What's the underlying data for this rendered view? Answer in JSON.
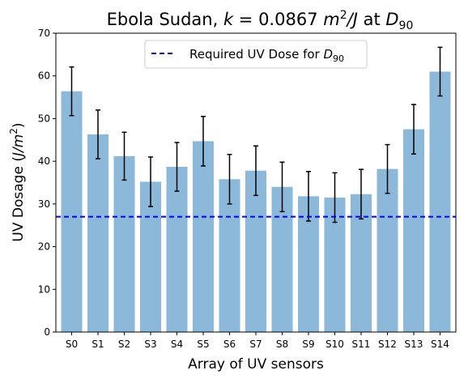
{
  "chart_data": {
    "type": "bar",
    "title": {
      "prefix": "Ebola Sudan, ",
      "k_symbol": "k",
      "k_value": " = 0.0867 ",
      "unit_base": "m",
      "unit_exp": "2",
      "unit_tail": "/J",
      "suffix": " at ",
      "d_base": "D",
      "d_sub": "90"
    },
    "xlabel": "Array of UV sensors",
    "ylabel": {
      "prefix": "UV Dosage (",
      "unit": "J/m",
      "exp": "2",
      "suffix": ")"
    },
    "categories": [
      "S0",
      "S1",
      "S2",
      "S3",
      "S4",
      "S5",
      "S6",
      "S7",
      "S8",
      "S9",
      "S10",
      "S11",
      "S12",
      "S13",
      "S14"
    ],
    "values": [
      56.4,
      46.3,
      41.2,
      35.2,
      38.7,
      44.7,
      35.8,
      37.8,
      34.0,
      31.8,
      31.5,
      32.3,
      38.2,
      47.5,
      61.0
    ],
    "error": [
      5.7,
      5.7,
      5.6,
      5.8,
      5.7,
      5.8,
      5.8,
      5.8,
      5.8,
      5.8,
      5.8,
      5.8,
      5.7,
      5.8,
      5.7
    ],
    "ylim": [
      0,
      70
    ],
    "yticks": [
      0,
      10,
      20,
      30,
      40,
      50,
      60,
      70
    ],
    "bar_color": "#8cb9d9",
    "threshold": {
      "value": 27.0,
      "color": "#0000ff",
      "label_prefix": "Required UV Dose for ",
      "label_base": "D",
      "label_sub": "90"
    },
    "legend_position": "upper center",
    "grid": false
  }
}
